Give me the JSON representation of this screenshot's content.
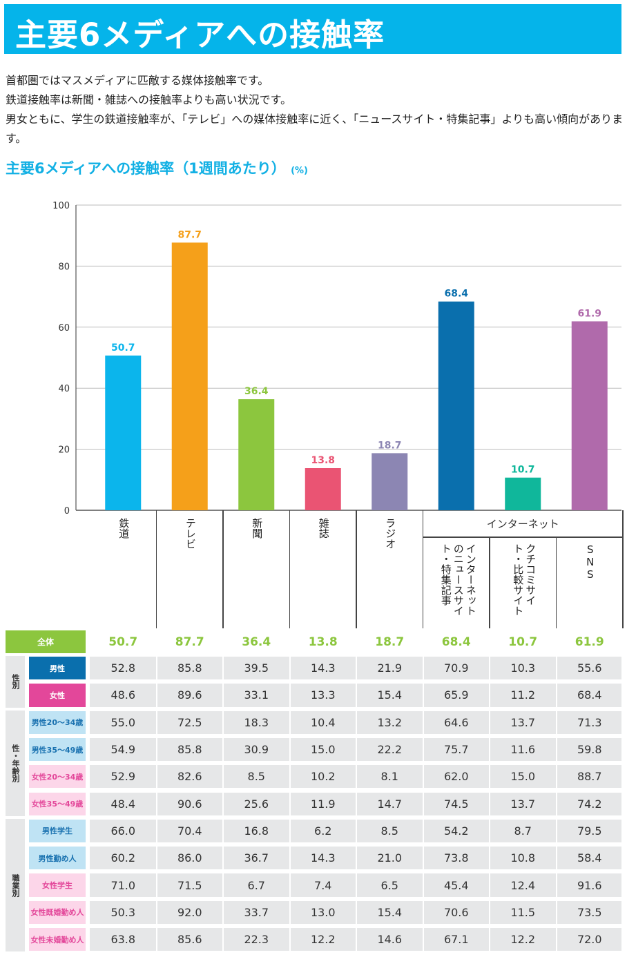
{
  "banner": {
    "title": "主要6メディアへの接触率"
  },
  "intro": [
    "首都圏ではマスメディアに匹敵する媒体接触率です。",
    "鉄道接触率は新聞・雑誌への接触率よりも高い状況です。",
    "男女ともに、学生の鉄道接触率が、「テレビ」への媒体接触率に近く、「ニュースサイト・特集記事」よりも高い傾向があります。"
  ],
  "subtitle": {
    "text": "主要6メディアへの接触率（1週間あたり）",
    "unit": "(%)"
  },
  "chart_data": {
    "type": "bar",
    "categories": [
      "鉄道",
      "テレビ",
      "新聞",
      "雑誌",
      "ラジオ",
      "インターネットのニュースサイト・特集記事",
      "クチコミサイト・比較サイト",
      "SNS"
    ],
    "values": [
      50.7,
      87.7,
      36.4,
      13.8,
      18.7,
      68.4,
      10.7,
      61.9
    ],
    "value_labels": [
      "50.7",
      "87.7",
      "36.4",
      "13.8",
      "18.7",
      "68.4",
      "10.7",
      "61.9"
    ],
    "colors": [
      "#0bb5ec",
      "#f5a01a",
      "#8cc63e",
      "#ea5473",
      "#8c86b3",
      "#0a6fad",
      "#10b79b",
      "#b06aab"
    ],
    "ylim": [
      0,
      100
    ],
    "yticks": [
      "0",
      "20",
      "40",
      "60",
      "80",
      "100"
    ],
    "group_label": "インターネット",
    "title": "主要6メディアへの接触率（1週間あたり）",
    "xlabel": "",
    "ylabel": "(%)"
  },
  "column_labels": [
    "鉄道",
    "テレビ",
    "新聞",
    "雑誌",
    "ラジオ",
    "インターネットの ニュースサイト・ 特集記事",
    "クチコミサイト・ 比較サイト",
    "SNS"
  ],
  "table": {
    "total_row": {
      "label": "全体",
      "values": [
        "50.7",
        "87.7",
        "36.4",
        "13.8",
        "18.7",
        "68.4",
        "10.7",
        "61.9"
      ]
    },
    "groups": [
      {
        "name": "性別",
        "rows": [
          {
            "label": "男性",
            "style": "blue-dark",
            "values": [
              "52.8",
              "85.8",
              "39.5",
              "14.3",
              "21.9",
              "70.9",
              "10.3",
              "55.6"
            ]
          },
          {
            "label": "女性",
            "style": "pink-dark",
            "values": [
              "48.6",
              "89.6",
              "33.1",
              "13.3",
              "15.4",
              "65.9",
              "11.2",
              "68.4"
            ]
          }
        ]
      },
      {
        "name": "性・年齢別",
        "rows": [
          {
            "label": "男性20〜34歳",
            "style": "blue-light",
            "values": [
              "55.0",
              "72.5",
              "18.3",
              "10.4",
              "13.2",
              "64.6",
              "13.7",
              "71.3"
            ]
          },
          {
            "label": "男性35〜49歳",
            "style": "blue-light",
            "values": [
              "54.9",
              "85.8",
              "30.9",
              "15.0",
              "22.2",
              "75.7",
              "11.6",
              "59.8"
            ]
          },
          {
            "label": "女性20〜34歳",
            "style": "pink-light",
            "values": [
              "52.9",
              "82.6",
              "8.5",
              "10.2",
              "8.1",
              "62.0",
              "15.0",
              "88.7"
            ]
          },
          {
            "label": "女性35〜49歳",
            "style": "pink-light",
            "values": [
              "48.4",
              "90.6",
              "25.6",
              "11.9",
              "14.7",
              "74.5",
              "13.7",
              "74.2"
            ]
          }
        ]
      },
      {
        "name": "職業別",
        "rows": [
          {
            "label": "男性学生",
            "style": "blue-light",
            "values": [
              "66.0",
              "70.4",
              "16.8",
              "6.2",
              "8.5",
              "54.2",
              "8.7",
              "79.5"
            ]
          },
          {
            "label": "男性勤め人",
            "style": "blue-light",
            "values": [
              "60.2",
              "86.0",
              "36.7",
              "14.3",
              "21.0",
              "73.8",
              "10.8",
              "58.4"
            ]
          },
          {
            "label": "女性学生",
            "style": "pink-light",
            "values": [
              "71.0",
              "71.5",
              "6.7",
              "7.4",
              "6.5",
              "45.4",
              "12.4",
              "91.6"
            ]
          },
          {
            "label": "女性既婚勤め人",
            "style": "pink-light",
            "values": [
              "50.3",
              "92.0",
              "33.7",
              "13.0",
              "15.4",
              "70.6",
              "11.5",
              "73.5"
            ]
          },
          {
            "label": "女性未婚勤め人",
            "style": "pink-light",
            "values": [
              "63.8",
              "85.6",
              "22.3",
              "12.2",
              "14.6",
              "67.1",
              "12.2",
              "72.0"
            ]
          }
        ]
      }
    ]
  },
  "theme": {
    "banner": "#05b4ea",
    "total_label_bg": "#8cc63e",
    "total_value": "#8cc63e",
    "blue_dark": "#0a6fad",
    "pink_dark": "#e3479a",
    "blue_light_bg": "#bfe3f4",
    "blue_light_text": "#1a72b0",
    "pink_light_bg": "#fcd6e9",
    "pink_light_text": "#e3479a",
    "row_bg": "#e6e7e8",
    "group_bg": "#e6e7e8"
  }
}
